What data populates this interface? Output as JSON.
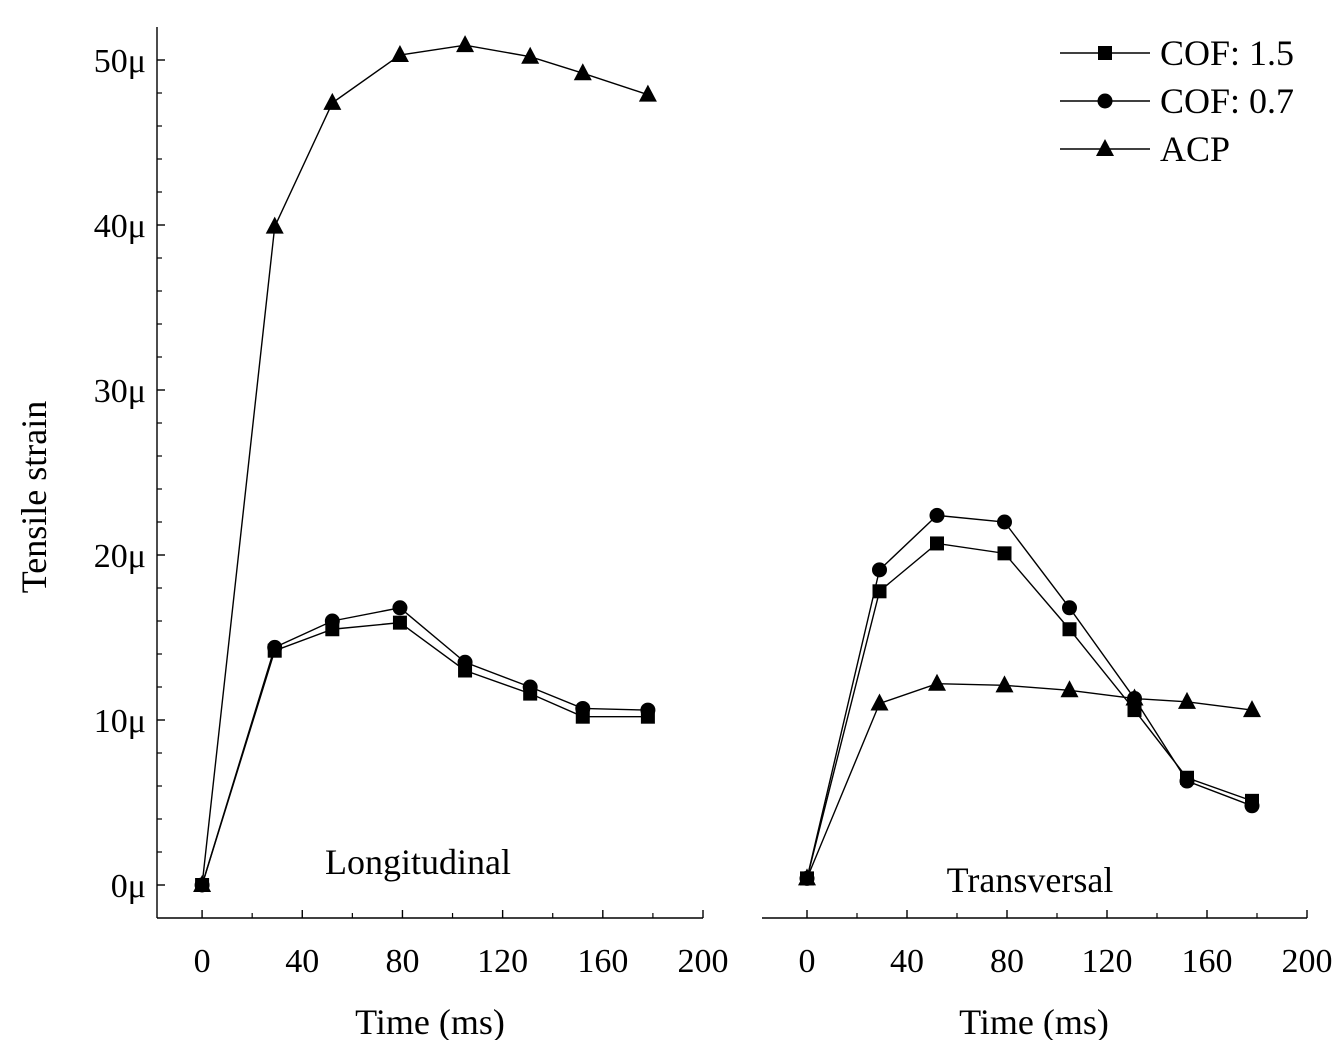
{
  "chart_data": {
    "type": "line",
    "ylabel": "Tensile strain",
    "ylim": [
      -2,
      52
    ],
    "yticks": [
      0,
      10,
      20,
      30,
      40,
      50
    ],
    "ytick_labels": [
      "0μ",
      "10μ",
      "20μ",
      "30μ",
      "40μ",
      "50μ"
    ],
    "legend": {
      "position": "top-right",
      "entries": [
        {
          "name": "COF: 1.5",
          "marker": "square"
        },
        {
          "name": "COF: 0.7",
          "marker": "circle"
        },
        {
          "name": "ACP",
          "marker": "triangle"
        }
      ]
    },
    "panels": [
      {
        "label": "Longitudinal",
        "xlabel": "Time (ms)",
        "xlim": [
          -18,
          200
        ],
        "xticks": [
          0,
          40,
          80,
          120,
          160,
          200
        ],
        "xtick_labels": [
          "0",
          "40",
          "80",
          "120",
          "160",
          "200"
        ],
        "series": [
          {
            "name": "COF: 1.5",
            "marker": "square",
            "x": [
              0,
              29,
              52,
              79,
              105,
              131,
              152,
              178
            ],
            "y": [
              0,
              14.2,
              15.5,
              15.9,
              13.0,
              11.6,
              10.2,
              10.2
            ]
          },
          {
            "name": "COF: 0.7",
            "marker": "circle",
            "x": [
              0,
              29,
              52,
              79,
              105,
              131,
              152,
              178
            ],
            "y": [
              0,
              14.4,
              16.0,
              16.8,
              13.5,
              12.0,
              10.7,
              10.6
            ]
          },
          {
            "name": "ACP",
            "marker": "triangle",
            "x": [
              0,
              29,
              52,
              79,
              105,
              131,
              152,
              178
            ],
            "y": [
              0,
              39.9,
              47.4,
              50.3,
              50.9,
              50.2,
              49.2,
              47.9
            ]
          }
        ]
      },
      {
        "label": "Transversal",
        "xlabel": "Time (ms)",
        "xlim": [
          -18,
          200
        ],
        "xticks": [
          0,
          40,
          80,
          120,
          160,
          200
        ],
        "xtick_labels": [
          "0",
          "40",
          "80",
          "120",
          "160",
          "200"
        ],
        "series": [
          {
            "name": "COF: 1.5",
            "marker": "square",
            "x": [
              0,
              29,
              52,
              79,
              105,
              131,
              152,
              178
            ],
            "y": [
              0.4,
              17.8,
              20.7,
              20.1,
              15.5,
              10.6,
              6.5,
              5.1
            ]
          },
          {
            "name": "COF: 0.7",
            "marker": "circle",
            "x": [
              0,
              29,
              52,
              79,
              105,
              131,
              152,
              178
            ],
            "y": [
              0.4,
              19.1,
              22.4,
              22.0,
              16.8,
              11.3,
              6.3,
              4.8
            ]
          },
          {
            "name": "ACP",
            "marker": "triangle",
            "x": [
              0,
              29,
              52,
              79,
              105,
              131,
              152,
              178
            ],
            "y": [
              0.4,
              11.0,
              12.2,
              12.1,
              11.8,
              11.3,
              11.1,
              10.6
            ]
          }
        ]
      }
    ]
  }
}
